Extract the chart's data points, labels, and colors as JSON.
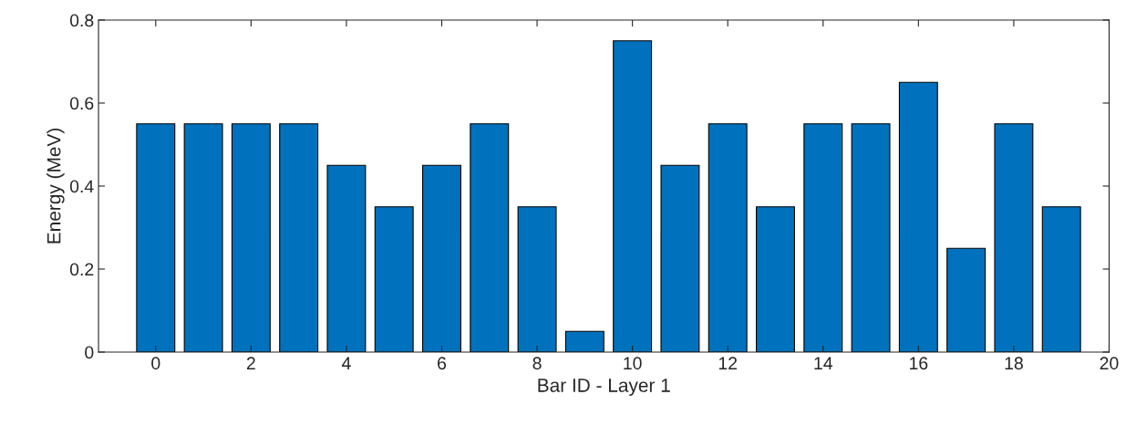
{
  "chart_data": {
    "type": "bar",
    "xlabel": "Bar ID - Layer 1",
    "ylabel": "Energy (MeV)",
    "x": [
      0,
      1,
      2,
      3,
      4,
      5,
      6,
      7,
      8,
      9,
      10,
      11,
      12,
      13,
      14,
      15,
      16,
      17,
      18,
      19
    ],
    "values": [
      0.55,
      0.55,
      0.55,
      0.55,
      0.45,
      0.35,
      0.45,
      0.55,
      0.35,
      0.05,
      0.75,
      0.45,
      0.55,
      0.35,
      0.55,
      0.55,
      0.65,
      0.25,
      0.55,
      0.35
    ],
    "color": "#0072bd",
    "xlim": [
      -1.2,
      20
    ],
    "xticks": [
      0,
      2,
      4,
      6,
      8,
      10,
      12,
      14,
      16,
      18,
      20
    ],
    "ylim": [
      0,
      0.8
    ],
    "yticks": [
      0,
      0.2,
      0.4,
      0.6,
      0.8
    ],
    "grid": false
  }
}
